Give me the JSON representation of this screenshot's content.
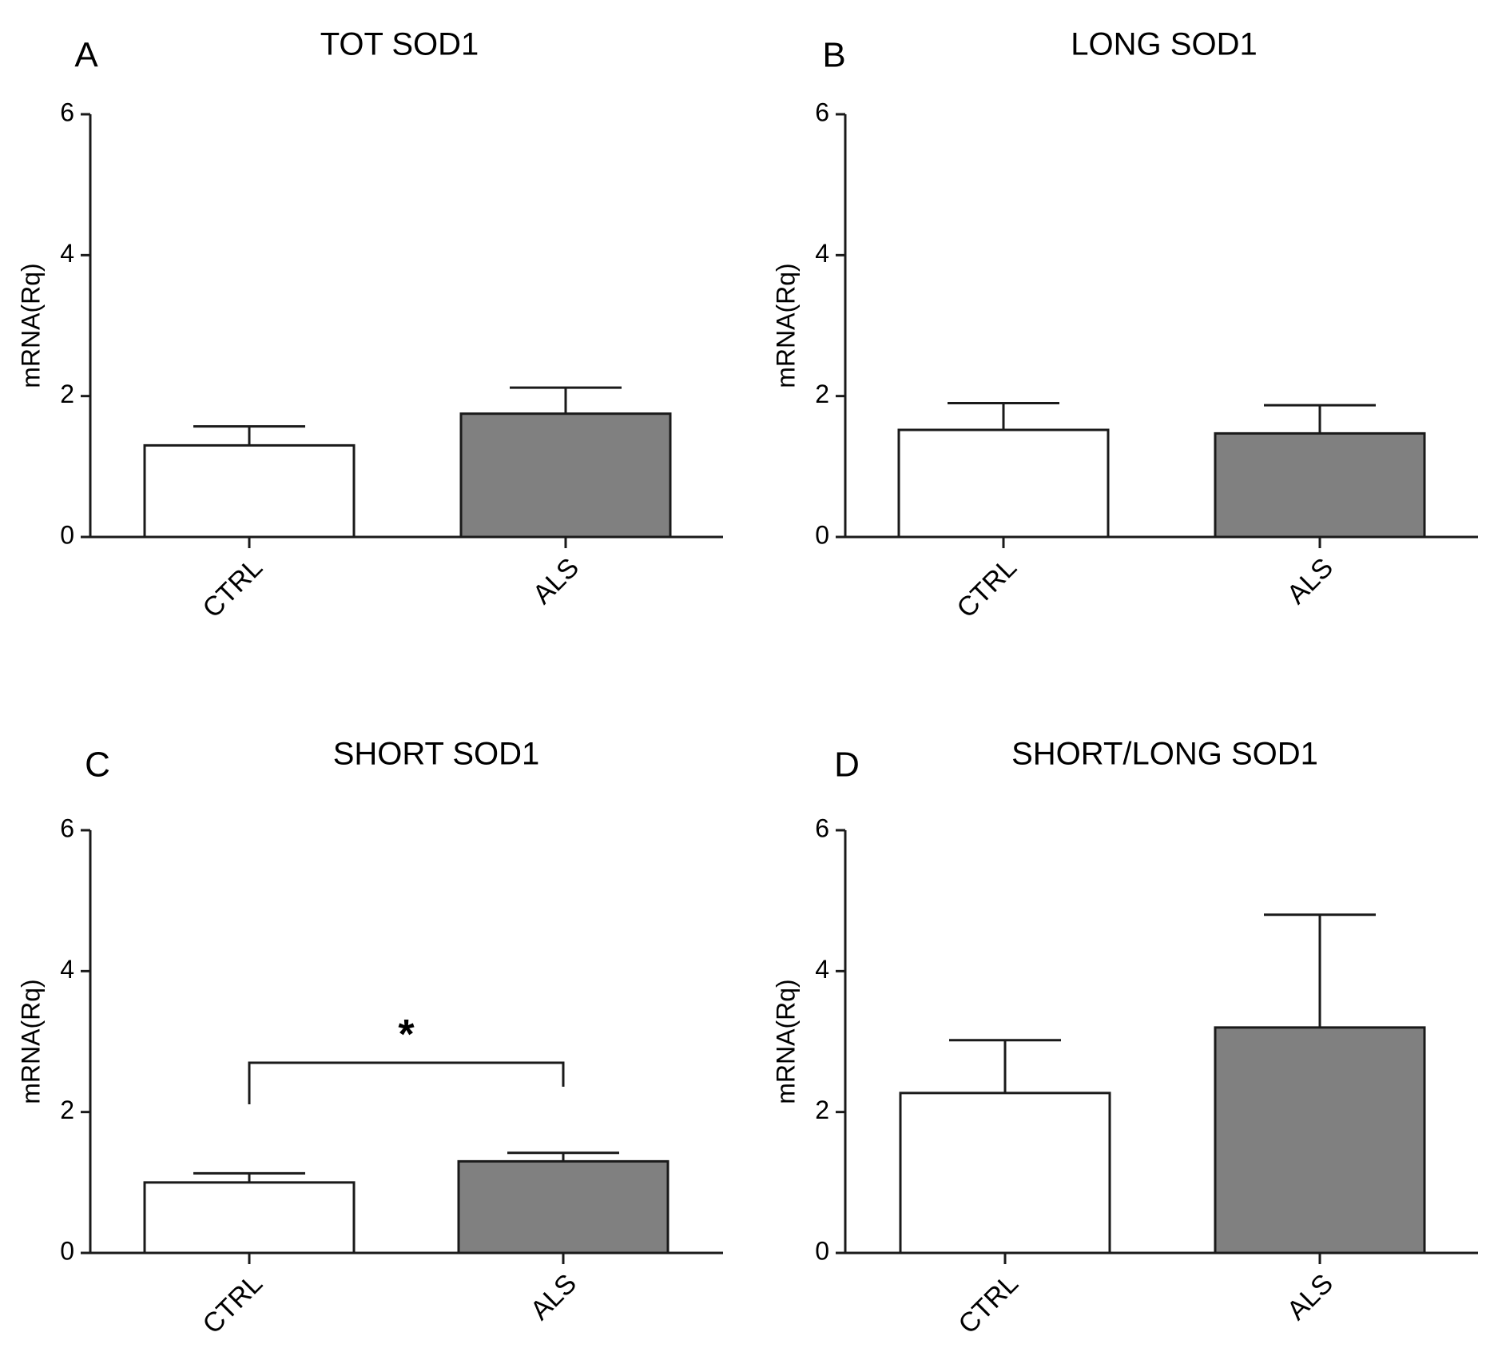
{
  "chart_data": [
    {
      "panel": "A",
      "type": "bar",
      "title": "TOT SOD1",
      "ylabel": "mRNA(Rq)",
      "xlabel": "",
      "ylim": [
        0,
        6
      ],
      "yticks": [
        "0",
        "2",
        "4",
        "6"
      ],
      "categories": [
        "CTRL",
        "ALS"
      ],
      "values": [
        1.3,
        1.75
      ],
      "errors": [
        0.27,
        0.37
      ],
      "colors": [
        "#ffffff",
        "#808080"
      ],
      "significance": null
    },
    {
      "panel": "B",
      "type": "bar",
      "title": "LONG SOD1",
      "ylabel": "mRNA(Rq)",
      "xlabel": "",
      "ylim": [
        0,
        6
      ],
      "yticks": [
        "0",
        "2",
        "4",
        "6"
      ],
      "categories": [
        "CTRL",
        "ALS"
      ],
      "values": [
        1.52,
        1.47
      ],
      "errors": [
        0.38,
        0.4
      ],
      "colors": [
        "#ffffff",
        "#808080"
      ],
      "significance": null
    },
    {
      "panel": "C",
      "type": "bar",
      "title": "SHORT SOD1",
      "ylabel": "mRNA(Rq)",
      "xlabel": "",
      "ylim": [
        0,
        6
      ],
      "yticks": [
        "0",
        "2",
        "4",
        "6"
      ],
      "categories": [
        "CTRL",
        "ALS"
      ],
      "values": [
        1.0,
        1.3
      ],
      "errors": [
        0.13,
        0.12
      ],
      "colors": [
        "#ffffff",
        "#808080"
      ],
      "significance": {
        "label": "*",
        "from": 0,
        "to": 1,
        "level": 2.7
      }
    },
    {
      "panel": "D",
      "type": "bar",
      "title": "SHORT/LONG SOD1",
      "ylabel": "mRNA(Rq)",
      "xlabel": "",
      "ylim": [
        0,
        6
      ],
      "yticks": [
        "0",
        "2",
        "4",
        "6"
      ],
      "categories": [
        "CTRL",
        "ALS"
      ],
      "values": [
        2.27,
        3.2
      ],
      "errors": [
        0.75,
        1.6
      ],
      "colors": [
        "#ffffff",
        "#808080"
      ],
      "significance": null
    }
  ]
}
